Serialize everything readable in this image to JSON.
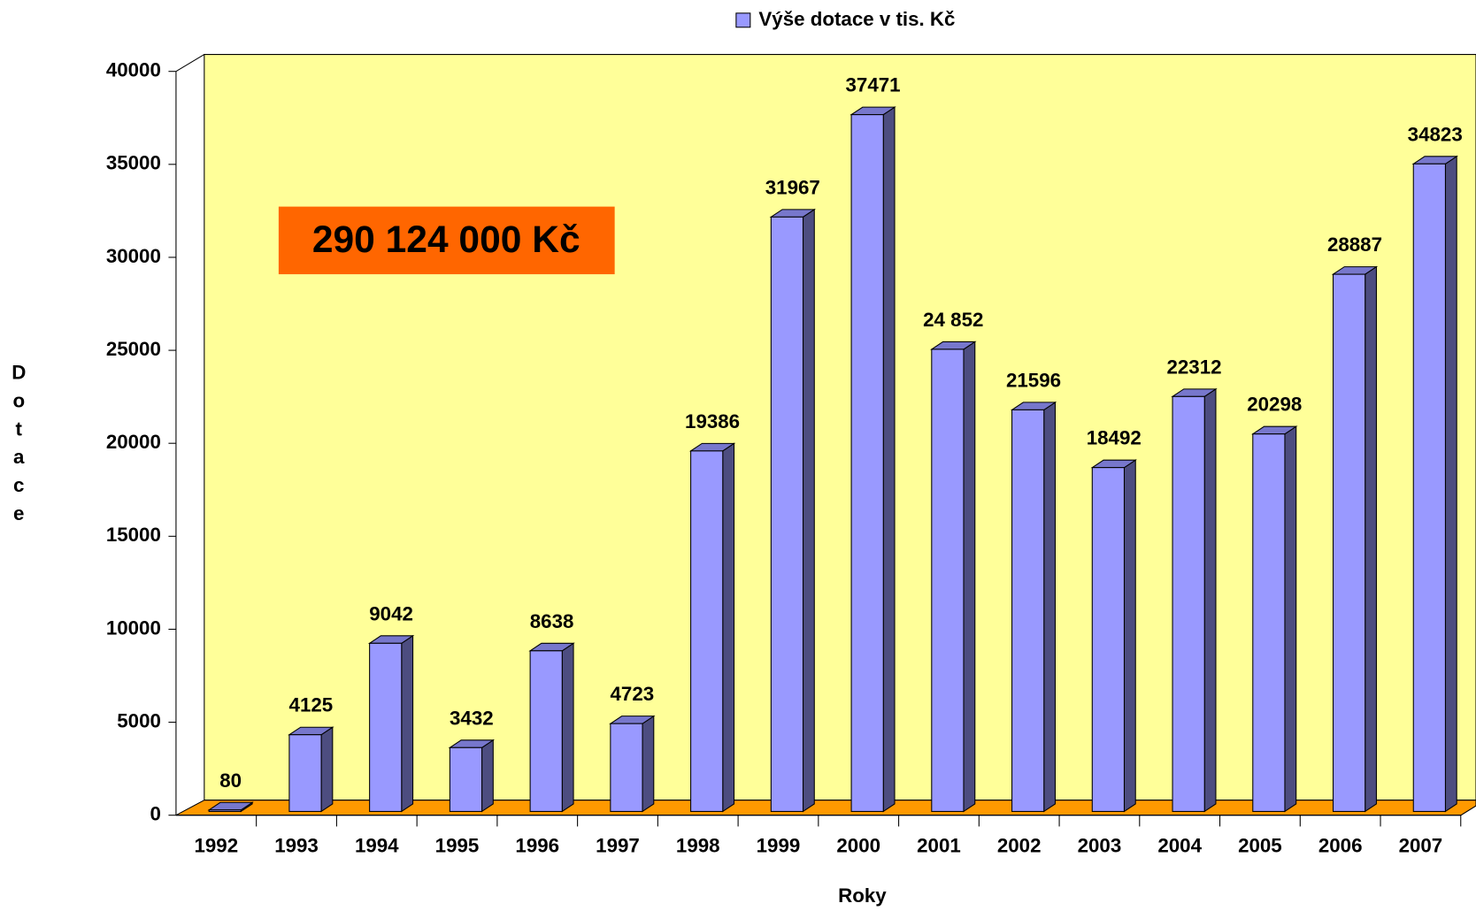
{
  "chart_data": {
    "type": "bar3d",
    "categories": [
      "1992",
      "1993",
      "1994",
      "1995",
      "1996",
      "1997",
      "1998",
      "1999",
      "2000",
      "2001",
      "2002",
      "2003",
      "2004",
      "2005",
      "2006",
      "2007"
    ],
    "series": [
      {
        "name": "Výše dotace v tis. Kč",
        "color": "#9999ff",
        "values": [
          80,
          4125,
          9042,
          3432,
          8638,
          4723,
          19386,
          31967,
          37471,
          24852,
          21596,
          18492,
          22312,
          20298,
          28887,
          34823
        ],
        "value_labels": [
          "80",
          "4125",
          "9042",
          "3432",
          "8638",
          "4723",
          "19386",
          "31967",
          "37471",
          "24 852",
          "21596",
          "18492",
          "22312",
          "20298",
          "28887",
          "34823"
        ]
      }
    ],
    "ylim": [
      0,
      40000
    ],
    "yticks": [
      0,
      5000,
      10000,
      15000,
      20000,
      25000,
      30000,
      35000,
      40000
    ],
    "y_label": "Dotace",
    "x_label": "Roky",
    "annotation": "290 124 000 Kč",
    "wall_color": "#ffff99",
    "floor_color": "#ff9900",
    "annotation_color": "#ff6600"
  }
}
